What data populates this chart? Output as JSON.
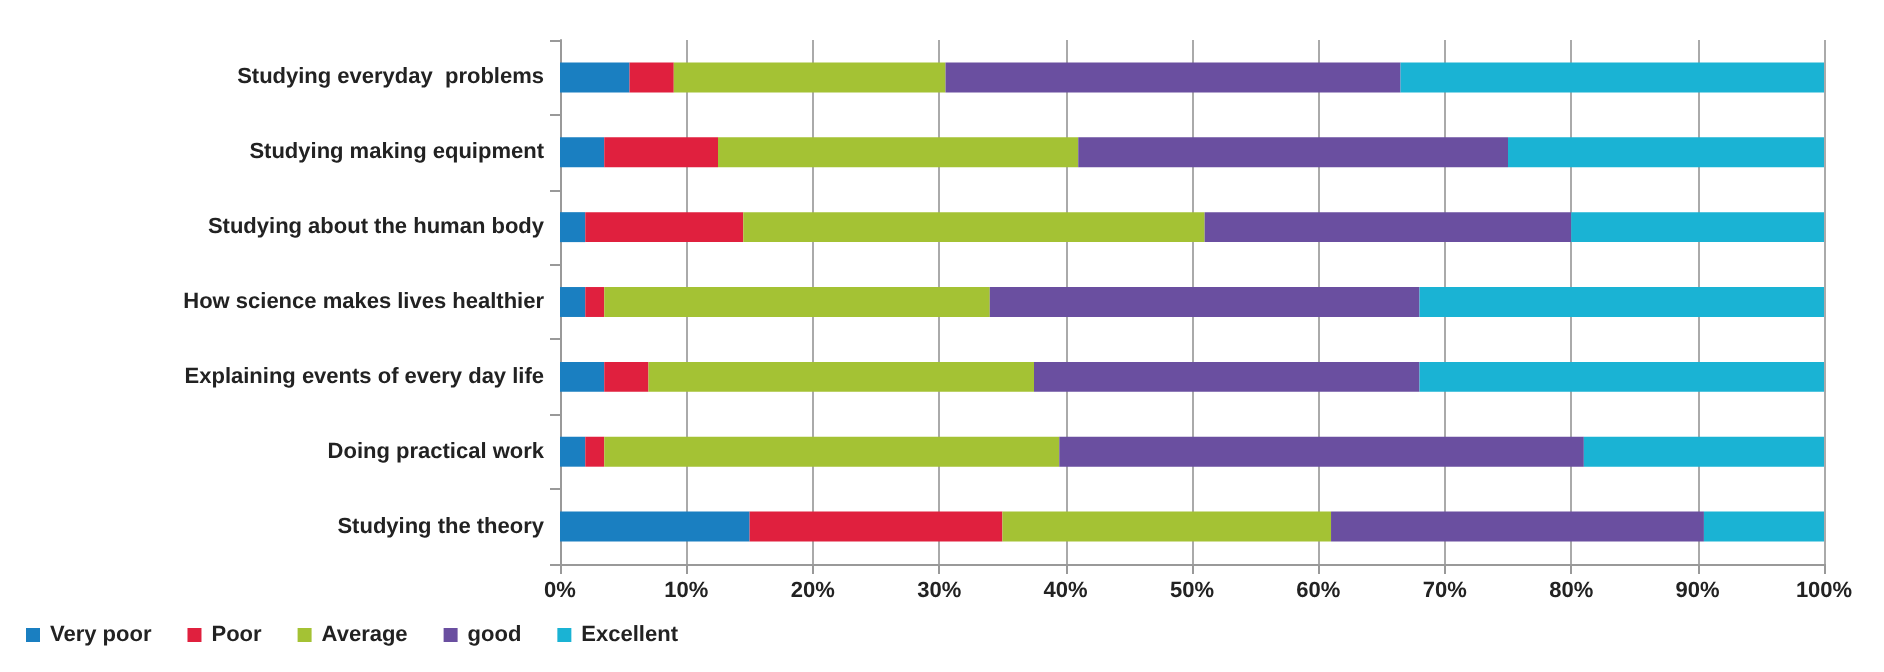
{
  "chart_data": {
    "type": "bar",
    "orientation": "horizontal",
    "stacked": true,
    "categories": [
      "Studying everyday  problems",
      "Studying making equipment",
      "Studying about the human body",
      "How science makes lives healthier",
      "Explaining events of every day life",
      "Doing practical work",
      "Studying the theory"
    ],
    "series": [
      {
        "name": "Very poor",
        "color": "#1a7fc1",
        "values": [
          5.5,
          3.5,
          2,
          2,
          3.5,
          2,
          15
        ]
      },
      {
        "name": "Poor",
        "color": "#e0203e",
        "values": [
          3.5,
          9,
          12.5,
          1.5,
          3.5,
          1.5,
          20
        ]
      },
      {
        "name": "Average",
        "color": "#a4c234",
        "values": [
          21.5,
          28.5,
          36.5,
          30.5,
          30.5,
          36,
          26
        ]
      },
      {
        "name": "good",
        "color": "#6a4fa0",
        "values": [
          36,
          34,
          29,
          34,
          30.5,
          41.5,
          29.5
        ]
      },
      {
        "name": "Excellent",
        "color": "#1ab3d4",
        "values": [
          33.5,
          25,
          20,
          32,
          32,
          19,
          9.5
        ]
      }
    ],
    "xlim": [
      0,
      100
    ],
    "xticks": [
      {
        "value": 0,
        "label": "0%"
      },
      {
        "value": 10,
        "label": "10%"
      },
      {
        "value": 20,
        "label": "20%"
      },
      {
        "value": 30,
        "label": "30%"
      },
      {
        "value": 40,
        "label": "40%"
      },
      {
        "value": 50,
        "label": "50%"
      },
      {
        "value": 60,
        "label": "60%"
      },
      {
        "value": 70,
        "label": "70%"
      },
      {
        "value": 80,
        "label": "80%"
      },
      {
        "value": 90,
        "label": "90%"
      },
      {
        "value": 100,
        "label": "100%"
      }
    ],
    "grid": "x",
    "legend": "bottom left"
  }
}
